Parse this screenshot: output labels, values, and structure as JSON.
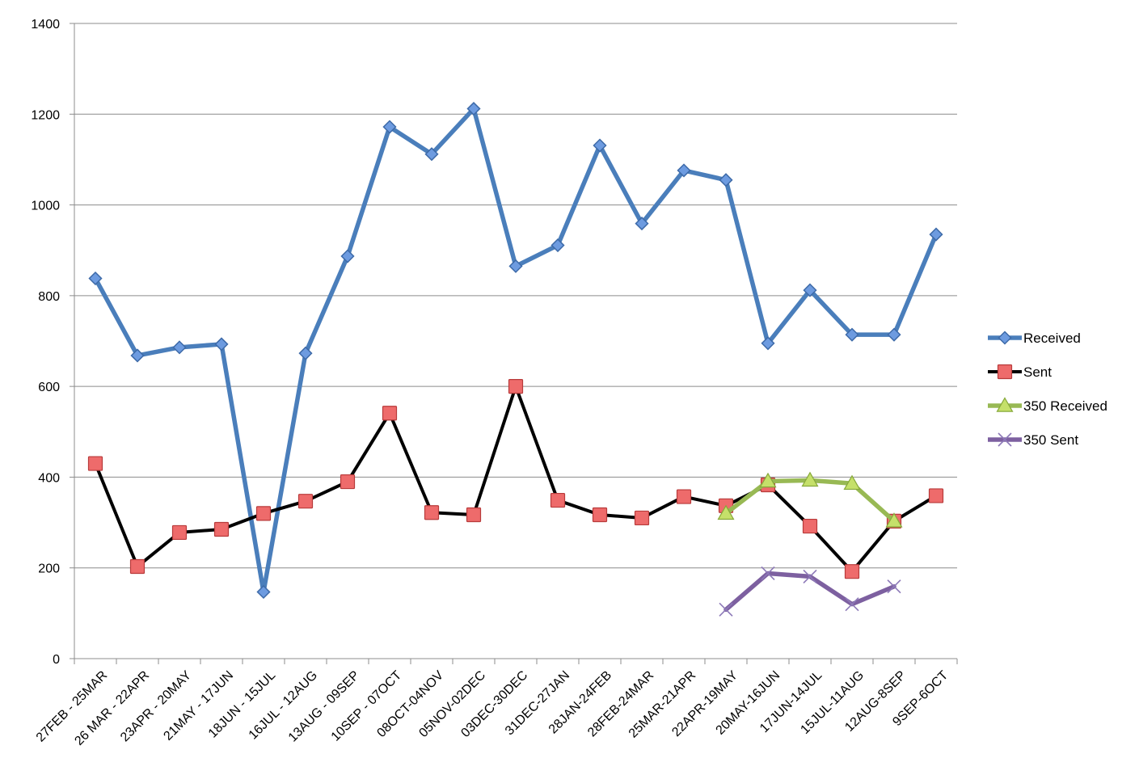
{
  "chart_data": {
    "type": "line",
    "title": "",
    "xlabel": "",
    "ylabel": "",
    "ylim": [
      0,
      1400
    ],
    "yticks": [
      0,
      200,
      400,
      600,
      800,
      1000,
      1200,
      1400
    ],
    "grid": "horizontal",
    "legend_position": "right",
    "categories": [
      "27FEB - 25MAR",
      "26 MAR - 22APR",
      "23APR - 20MAY",
      "21MAY - 17JUN",
      "18JUN - 15JUL",
      "16JUL - 12AUG",
      "13AUG - 09SEP",
      "10SEP - 07OCT",
      "08OCT-04NOV",
      "05NOV-02DEC",
      "03DEC-30DEC",
      "31DEC-27JAN",
      "28JAN-24FEB",
      "28FEB-24MAR",
      "25MAR-21APR",
      "22APR-19MAY",
      "20MAY-16JUN",
      "17JUN-14JUL",
      "15JUL-11AUG",
      "12AUG-8SEP",
      "9SEP-6OCT"
    ],
    "series": [
      {
        "name": "Received",
        "color": "#4a7ebb",
        "marker": "diamond",
        "values": [
          838,
          668,
          686,
          693,
          147,
          673,
          887,
          1172,
          1112,
          1212,
          865,
          911,
          1131,
          959,
          1076,
          1055,
          695,
          812,
          714,
          714,
          935
        ]
      },
      {
        "name": "Sent",
        "color": "#000000",
        "marker": "square",
        "values": [
          430,
          203,
          278,
          285,
          320,
          347,
          390,
          541,
          322,
          317,
          600,
          349,
          317,
          310,
          357,
          337,
          383,
          292,
          192,
          303,
          359
        ]
      },
      {
        "name": "350 Received",
        "color": "#98b954",
        "marker": "triangle",
        "values": [
          null,
          null,
          null,
          null,
          null,
          null,
          null,
          null,
          null,
          null,
          null,
          null,
          null,
          null,
          null,
          320,
          391,
          393,
          386,
          303,
          null
        ]
      },
      {
        "name": "350 Sent",
        "color": "#7d60a0",
        "marker": "x",
        "values": [
          null,
          null,
          null,
          null,
          null,
          null,
          null,
          null,
          null,
          null,
          null,
          null,
          null,
          null,
          null,
          108,
          188,
          181,
          120,
          159,
          null
        ]
      }
    ]
  }
}
